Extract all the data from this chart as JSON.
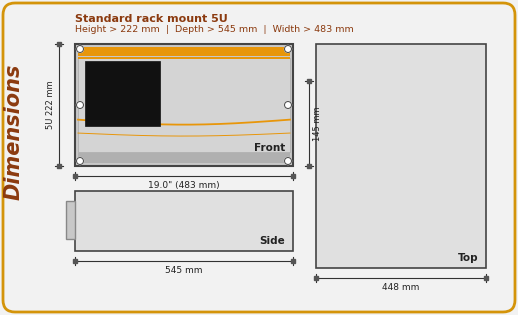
{
  "title_line1": "Standard rack mount 5U",
  "title_line2": "Height > 222 mm  |  Depth > 545 mm  |  Width > 483 mm",
  "side_label": "Dimensions",
  "bg_color": "#f2f2f2",
  "border_color": "#d4940a",
  "title_color": "#8B3A0F",
  "front_label": "Front",
  "side_view_label": "Side",
  "top_label": "Top",
  "dim_483": "19.0\" (483 mm)",
  "dim_545": "545 mm",
  "dim_448": "448 mm",
  "dim_222": "5U 222 mm",
  "dim_145": "145 mm",
  "orange": "#e8960a",
  "dark_border": "#444444",
  "screw_fill": "#ffffff",
  "panel_bg": "#d8d8d8",
  "panel_inner": "#cccccc",
  "side_bg": "#e0e0e0",
  "top_bg": "#e0e0e0"
}
